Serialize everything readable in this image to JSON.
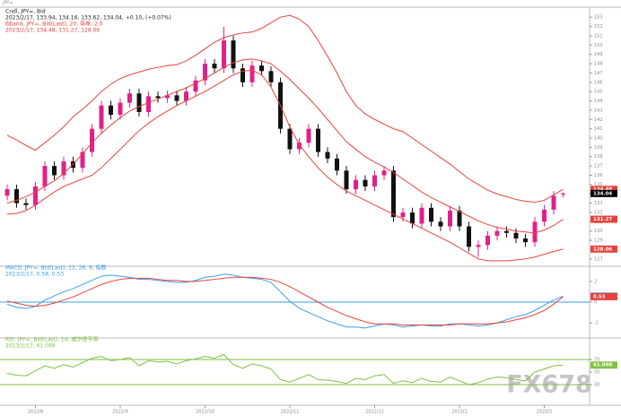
{
  "header": "JPY=",
  "watermark": "FX678",
  "chart_data": [
    {
      "type": "candlestick",
      "title": "Cndl, JPY=, Bid",
      "subtitle": "2023/2/17, 133.94, 134.16, 133.62, 134.04, +0.10, (+0.07%)",
      "overlay_title": "BBand, JPY=, Bid(Last), 20, 简单, 2.0",
      "overlay_subtitle": "2023/2/17, 134.48, 131.27, 128.06",
      "up_color": "#e0218a",
      "down_color": "#111111",
      "last_color": "#000000",
      "open": [
        133.8,
        134.5,
        133.0,
        132.8,
        134.8,
        137.0,
        136.0,
        137.5,
        136.8,
        138.5,
        141.0,
        143.5,
        142.5,
        143.8,
        144.8,
        142.8,
        144.5,
        144.3,
        144.6,
        144.0,
        145.0,
        146.2,
        148.0,
        147.5,
        150.5,
        147.5,
        146.0,
        147.8,
        147.2,
        146.0,
        141.0,
        138.8,
        139.5,
        141.0,
        138.5,
        137.8,
        136.5,
        134.5,
        135.5,
        134.8,
        136.0,
        136.5,
        131.5,
        132.0,
        130.8,
        132.5,
        131.0,
        130.5,
        132.2,
        130.5,
        128.3,
        128.5,
        129.5,
        130.0,
        129.8,
        129.2,
        128.8,
        131.0,
        132.3,
        133.94
      ],
      "high": [
        135.0,
        135.0,
        133.5,
        135.3,
        137.5,
        137.5,
        138.0,
        138.0,
        139.0,
        141.5,
        144.0,
        144.0,
        144.3,
        145.3,
        145.3,
        145.0,
        145.0,
        145.1,
        145.1,
        145.5,
        146.7,
        148.5,
        148.5,
        151.94,
        151.0,
        148.0,
        148.3,
        148.3,
        147.7,
        146.5,
        141.5,
        140.0,
        141.5,
        141.5,
        139.0,
        138.3,
        137.0,
        136.0,
        136.0,
        136.5,
        137.0,
        137.0,
        132.5,
        132.5,
        133.0,
        133.0,
        131.5,
        132.7,
        132.7,
        131.0,
        129.0,
        130.0,
        130.5,
        130.5,
        130.3,
        129.7,
        131.5,
        132.8,
        134.3,
        134.16
      ],
      "low": [
        133.3,
        132.5,
        132.3,
        132.3,
        134.3,
        135.5,
        135.5,
        136.3,
        136.3,
        138.0,
        140.5,
        142.0,
        142.0,
        143.3,
        142.3,
        142.3,
        143.8,
        143.8,
        143.5,
        143.5,
        144.5,
        145.7,
        147.0,
        147.0,
        147.0,
        145.5,
        145.5,
        146.7,
        145.5,
        140.5,
        138.3,
        138.3,
        139.0,
        138.0,
        137.3,
        136.0,
        134.0,
        134.0,
        134.3,
        134.3,
        135.5,
        131.0,
        131.0,
        130.3,
        130.3,
        130.5,
        130.0,
        130.0,
        130.0,
        127.8,
        127.2,
        128.0,
        129.0,
        129.3,
        128.7,
        128.3,
        128.3,
        130.5,
        131.8,
        133.62
      ],
      "close": [
        134.5,
        133.0,
        132.8,
        134.8,
        137.0,
        136.0,
        137.5,
        136.8,
        138.5,
        141.0,
        143.5,
        142.5,
        143.8,
        144.8,
        142.8,
        144.5,
        144.3,
        144.6,
        144.0,
        145.0,
        146.2,
        148.0,
        147.5,
        150.5,
        147.5,
        146.0,
        147.8,
        147.2,
        146.0,
        141.0,
        138.8,
        139.5,
        141.0,
        138.5,
        137.8,
        136.5,
        134.5,
        135.5,
        134.8,
        136.0,
        136.5,
        131.5,
        132.0,
        130.8,
        132.5,
        131.0,
        130.5,
        132.2,
        130.5,
        128.3,
        128.5,
        129.5,
        130.0,
        129.8,
        129.2,
        128.8,
        131.0,
        132.3,
        133.8,
        134.04
      ],
      "series": [
        {
          "color": "#e8413c",
          "values": [
            140.3,
            139.8,
            139.2,
            138.7,
            139.5,
            140.3,
            141.2,
            142.3,
            143.1,
            144.0,
            145.0,
            145.8,
            146.4,
            146.8,
            147.1,
            147.4,
            147.6,
            147.8,
            147.9,
            148.3,
            148.9,
            149.6,
            150.3,
            150.8,
            151.1,
            151.3,
            151.4,
            151.8,
            152.4,
            153.0,
            153.2,
            152.8,
            152.0,
            150.5,
            148.8,
            147.0,
            145.0,
            143.5,
            142.6,
            142.0,
            141.5,
            141.0,
            140.7,
            140.0,
            139.3,
            138.6,
            137.9,
            137.2,
            136.4,
            135.6,
            135.0,
            134.4,
            134.0,
            133.7,
            133.4,
            133.2,
            133.1,
            133.3,
            133.9,
            134.48
          ]
        },
        {
          "color": "#e8413c",
          "values": [
            133.0,
            133.3,
            133.7,
            134.2,
            134.8,
            135.4,
            136.2,
            137.2,
            138.3,
            139.5,
            140.5,
            141.4,
            142.2,
            142.9,
            143.4,
            143.8,
            144.2,
            144.6,
            145.0,
            145.4,
            145.9,
            146.4,
            147.0,
            147.6,
            148.1,
            148.4,
            148.5,
            148.3,
            148.0,
            147.2,
            146.3,
            145.3,
            144.3,
            143.2,
            142.0,
            140.8,
            139.6,
            138.8,
            138.0,
            137.4,
            136.9,
            136.3,
            135.6,
            134.9,
            134.2,
            133.6,
            133.1,
            132.6,
            132.1,
            131.6,
            131.1,
            130.7,
            130.4,
            130.2,
            130.0,
            129.9,
            129.8,
            130.1,
            130.6,
            131.27
          ]
        },
        {
          "color": "#e8413c",
          "values": [
            131.8,
            131.9,
            132.2,
            132.8,
            133.5,
            134.2,
            134.8,
            135.2,
            135.6,
            136.0,
            136.8,
            137.8,
            138.8,
            139.8,
            140.8,
            141.6,
            142.3,
            142.9,
            143.5,
            144.0,
            144.5,
            145.0,
            145.6,
            146.2,
            146.8,
            147.2,
            147.3,
            146.8,
            145.5,
            143.5,
            141.2,
            139.3,
            138.0,
            136.8,
            135.8,
            135.0,
            134.3,
            133.8,
            133.3,
            132.8,
            132.3,
            131.8,
            131.3,
            130.8,
            130.3,
            129.8,
            129.3,
            128.8,
            128.2,
            127.6,
            127.0,
            126.8,
            126.8,
            126.8,
            126.9,
            127.0,
            127.2,
            127.5,
            127.8,
            128.06
          ]
        }
      ],
      "ylim": [
        126.5,
        153.5
      ],
      "yticks": [
        127,
        128,
        129,
        130,
        131,
        132,
        133,
        134,
        135,
        136,
        137,
        138,
        139,
        140,
        141,
        142,
        143,
        144,
        145,
        146,
        147,
        148,
        149,
        150,
        151,
        152,
        153
      ]
    },
    {
      "type": "line",
      "title": "MACD, JPY=, Bid(Last), 12, 26, 9, 指数",
      "subtitle": "2023/2/17, 0.58, 0.53",
      "series": [
        {
          "color": "#3a9ee8",
          "values": [
            -0.2,
            -0.5,
            -0.6,
            -0.4,
            0.2,
            0.6,
            1.0,
            1.3,
            1.7,
            2.1,
            2.5,
            2.6,
            2.5,
            2.4,
            2.2,
            2.2,
            2.1,
            2.0,
            1.9,
            1.9,
            2.1,
            2.4,
            2.5,
            2.7,
            2.6,
            2.4,
            2.3,
            2.2,
            1.9,
            1.0,
            0.1,
            -0.6,
            -1.0,
            -1.4,
            -1.8,
            -2.1,
            -2.4,
            -2.4,
            -2.5,
            -2.3,
            -2.1,
            -2.2,
            -2.4,
            -2.3,
            -2.2,
            -2.3,
            -2.3,
            -2.1,
            -2.1,
            -2.2,
            -2.3,
            -2.2,
            -2.0,
            -1.7,
            -1.4,
            -1.2,
            -0.8,
            -0.3,
            0.2,
            0.58
          ]
        },
        {
          "color": "#e8413c",
          "values": [
            0.1,
            -0.1,
            -0.3,
            -0.4,
            -0.3,
            -0.1,
            0.2,
            0.5,
            0.9,
            1.3,
            1.7,
            2.0,
            2.2,
            2.3,
            2.3,
            2.3,
            2.2,
            2.1,
            2.1,
            2.0,
            2.0,
            2.1,
            2.2,
            2.3,
            2.4,
            2.4,
            2.4,
            2.3,
            2.2,
            1.9,
            1.5,
            1.0,
            0.5,
            0.0,
            -0.5,
            -0.9,
            -1.3,
            -1.6,
            -1.9,
            -2.1,
            -2.1,
            -2.1,
            -2.2,
            -2.2,
            -2.2,
            -2.2,
            -2.2,
            -2.2,
            -2.1,
            -2.1,
            -2.1,
            -2.1,
            -2.0,
            -1.9,
            -1.7,
            -1.5,
            -1.2,
            -0.8,
            -0.2,
            0.53
          ]
        }
      ],
      "ylim": [
        -3.2,
        3.2
      ],
      "yticks": [
        -2,
        0,
        2
      ]
    },
    {
      "type": "line",
      "title": "RSI, JPY=, Bid(Last), 14, 威尔德平滑",
      "subtitle": "2023/2/17, 61.098",
      "series": [
        {
          "color": "#7ec242",
          "values": [
            48,
            45,
            44,
            52,
            60,
            56,
            62,
            58,
            65,
            72,
            75,
            68,
            70,
            73,
            60,
            68,
            66,
            67,
            63,
            68,
            71,
            75,
            72,
            78,
            62,
            56,
            63,
            60,
            55,
            38,
            34,
            40,
            46,
            38,
            37,
            35,
            32,
            40,
            38,
            44,
            46,
            32,
            36,
            33,
            40,
            35,
            34,
            42,
            36,
            30,
            33,
            39,
            42,
            41,
            38,
            36,
            50,
            55,
            60,
            61.098
          ]
        }
      ],
      "levels": [
        70,
        30
      ],
      "level_color": "#7ec242",
      "ylim": [
        0,
        100
      ],
      "yticks": [
        30,
        50,
        70
      ],
      "xticks": [
        {
          "value": 3,
          "label": "2022/8"
        },
        {
          "value": 12,
          "label": "2022/9"
        },
        {
          "value": 21,
          "label": "2022/10"
        },
        {
          "value": 30,
          "label": "2022/11"
        },
        {
          "value": 39,
          "label": "2022/12"
        },
        {
          "value": 48,
          "label": "2023/1"
        },
        {
          "value": 57,
          "label": "2023/2"
        }
      ]
    }
  ]
}
